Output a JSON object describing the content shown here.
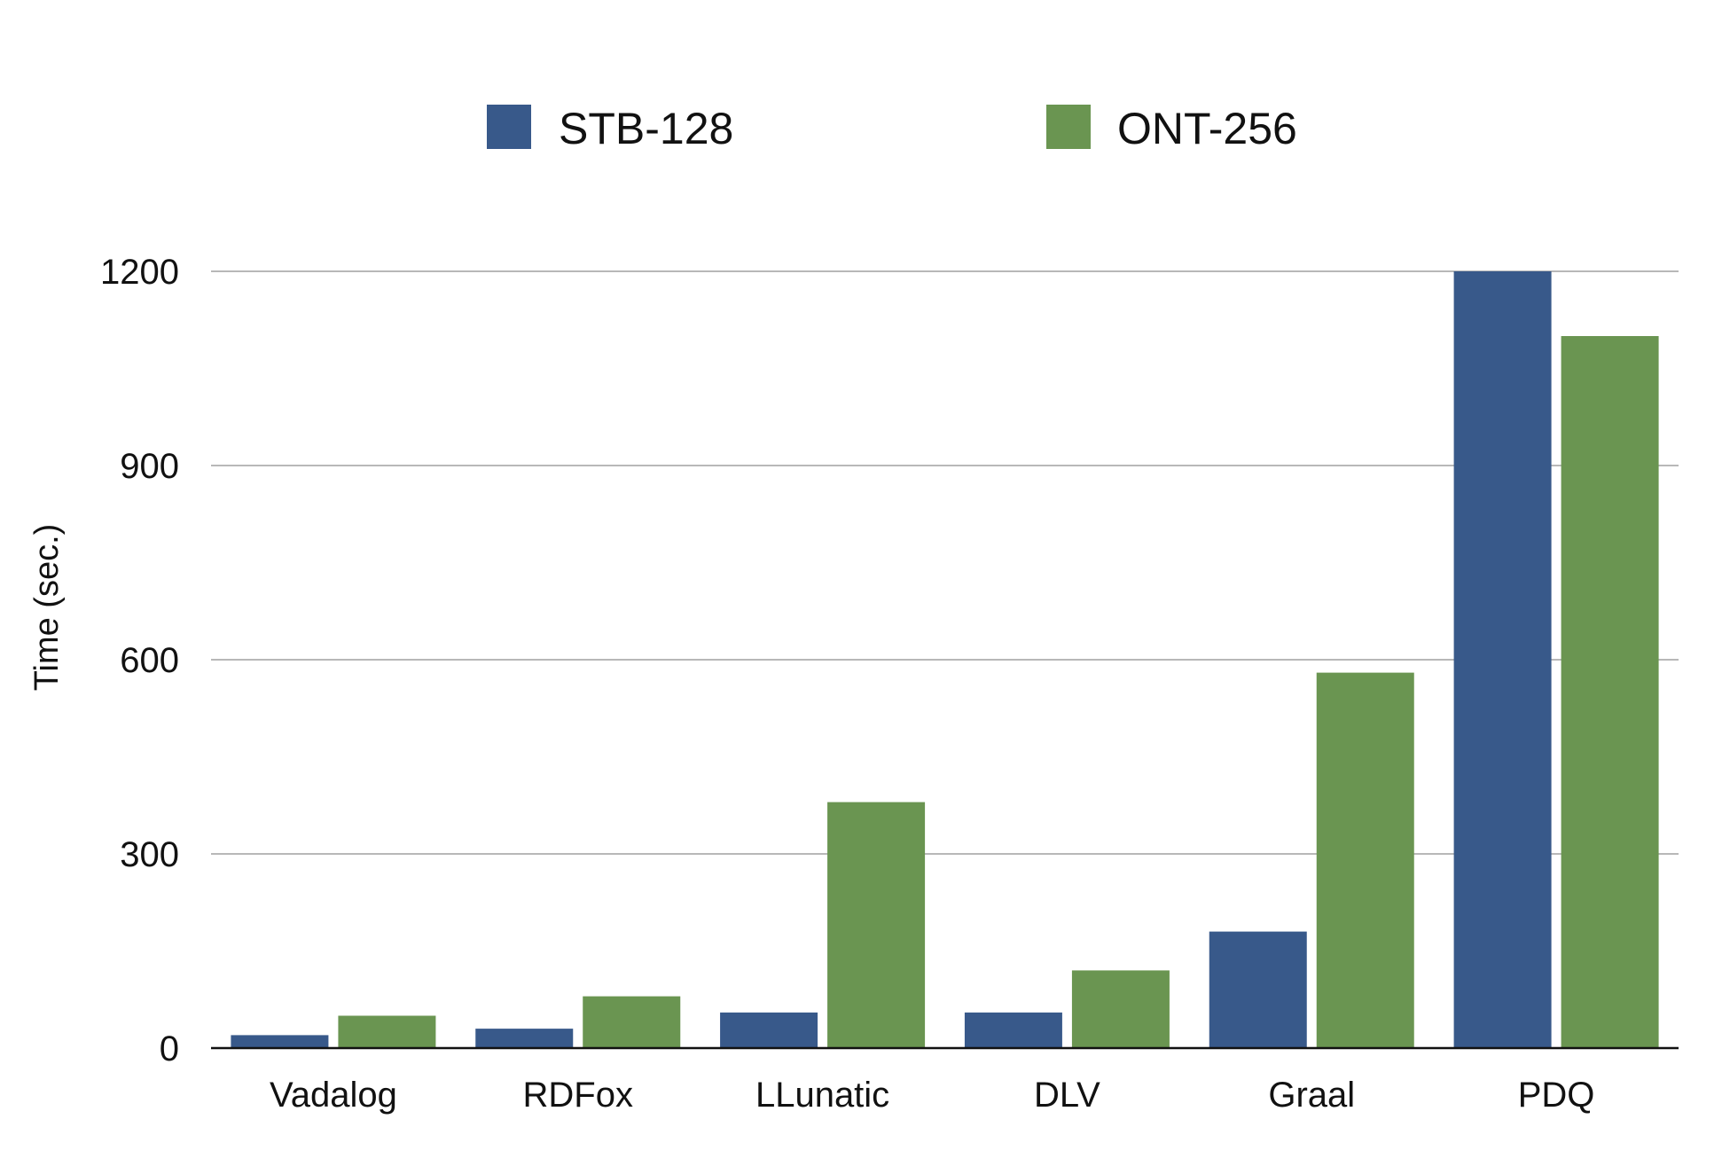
{
  "chart_data": {
    "type": "bar",
    "title": "",
    "xlabel": "",
    "ylabel": "Time (sec.)",
    "categories": [
      "Vadalog",
      "RDFox",
      "LLunatic",
      "DLV",
      "Graal",
      "PDQ"
    ],
    "series": [
      {
        "name": "STB-128",
        "color": "#38598a",
        "values": [
          20,
          30,
          55,
          55,
          180,
          1200
        ]
      },
      {
        "name": "ONT-256",
        "color": "#6a9551",
        "values": [
          50,
          80,
          380,
          120,
          580,
          1100
        ]
      }
    ],
    "ylim": [
      0,
      1200
    ],
    "yticks": [
      0,
      300,
      600,
      900,
      1200
    ],
    "ytick_labels": [
      "0",
      "300",
      "600",
      "900",
      "1200"
    ],
    "grid": true,
    "legend_position": "top"
  }
}
